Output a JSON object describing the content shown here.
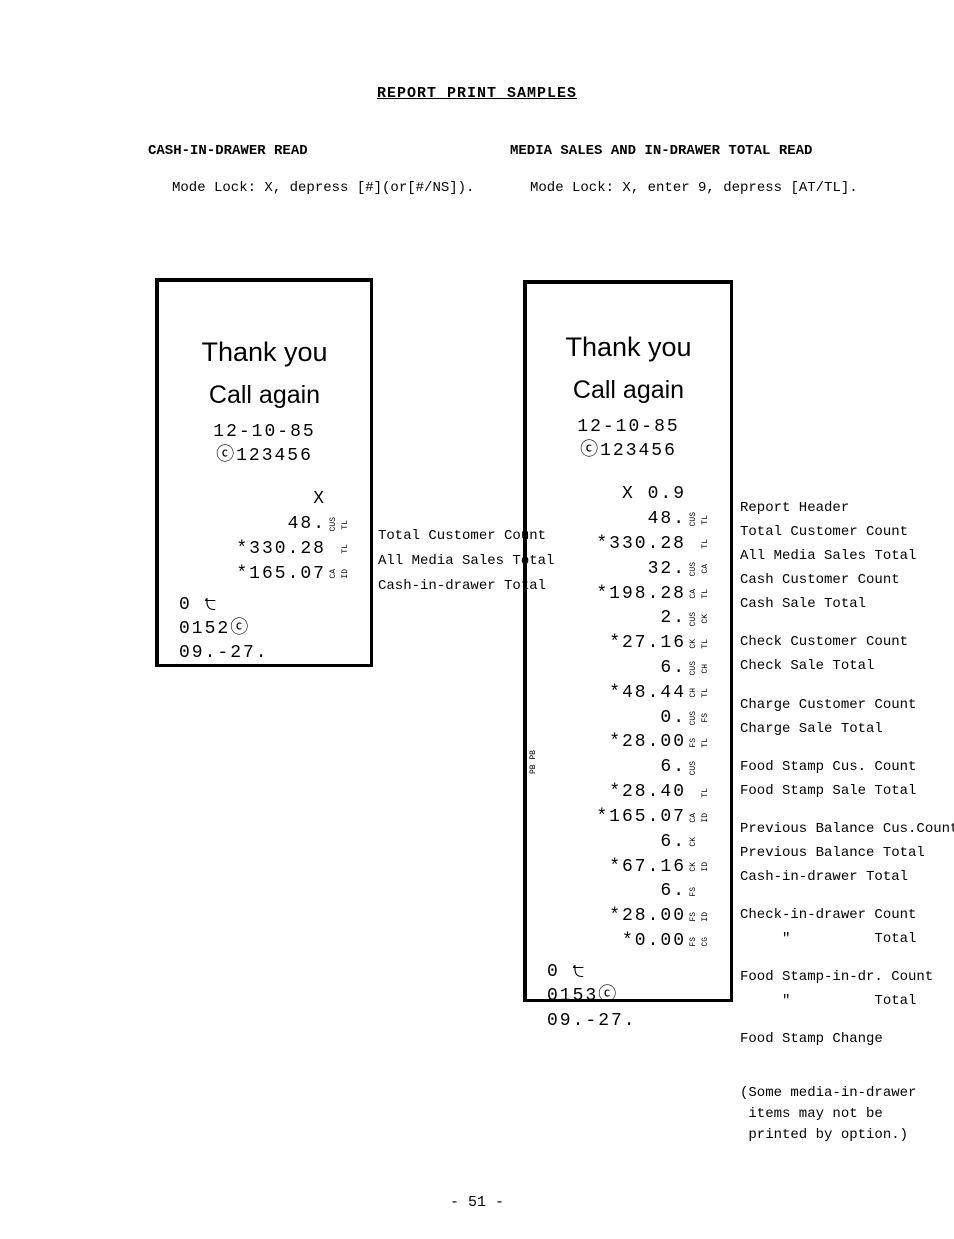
{
  "title": "REPORT PRINT SAMPLES",
  "left_header": "CASH-IN-DRAWER READ",
  "right_header": "MEDIA SALES AND IN-DRAWER TOTAL READ",
  "left_instr": "Mode Lock: X, depress [#](or[#/NS]).",
  "right_instr": "Mode Lock: X, enter 9, depress [AT/TL].",
  "thank_you": "Thank you",
  "call_again": "Call again",
  "date": "12-10-85",
  "serial": "ⓒ123456",
  "left_receipt": {
    "mode": "X",
    "rows": [
      {
        "val": "48.",
        "t1": "CUS",
        "t2": "TL"
      },
      {
        "val": "*330.28",
        "t1": "",
        "t2": "TL"
      },
      {
        "val": "*165.07",
        "t1": "CA",
        "t2": "ID"
      }
    ],
    "footer": [
      "0 ੮",
      "0152ⓒ",
      "09.-27."
    ]
  },
  "right_receipt": {
    "mode": "X  0.9",
    "rows": [
      {
        "val": "48.",
        "t1": "CUS",
        "t2": "TL"
      },
      {
        "val": "*330.28",
        "t1": "",
        "t2": "TL"
      },
      {
        "val": "32.",
        "t1": "CUS",
        "t2": "CA"
      },
      {
        "val": "*198.28",
        "t1": "CA",
        "t2": "TL"
      },
      {
        "val": "2.",
        "t1": "CUS",
        "t2": "CK"
      },
      {
        "val": "*27.16",
        "t1": "CK",
        "t2": "TL"
      },
      {
        "val": "6.",
        "t1": "CUS",
        "t2": "CH"
      },
      {
        "val": "*48.44",
        "t1": "CH",
        "t2": "TL"
      },
      {
        "val": "0.",
        "t1": "CUS",
        "t2": "FS"
      },
      {
        "val": "*28.00",
        "t1": "FS",
        "t2": "TL"
      },
      {
        "val": "6.",
        "t1": "CUS",
        "t2": ""
      },
      {
        "val": "*28.40",
        "t1": "",
        "t2": "TL"
      },
      {
        "val": "*165.07",
        "t1": "CA",
        "t2": "ID"
      },
      {
        "val": "6.",
        "t1": "CK",
        "t2": ""
      },
      {
        "val": "*67.16",
        "t1": "CK",
        "t2": "ID"
      },
      {
        "val": "6.",
        "t1": "FS",
        "t2": ""
      },
      {
        "val": "*28.00",
        "t1": "FS",
        "t2": "ID"
      },
      {
        "val": "*0.00",
        "t1": "FS",
        "t2": "CG"
      }
    ],
    "footer": [
      "0 ੮",
      "0153ⓒ",
      "09.-27."
    ]
  },
  "left_labels": [
    "Total Customer Count",
    "All Media Sales Total",
    "Cash-in-drawer Total"
  ],
  "right_labels": [
    [
      "Report Header",
      "Total Customer Count",
      "All Media Sales Total",
      "Cash Customer Count",
      "Cash Sale Total"
    ],
    [
      "Check Customer Count",
      "Check Sale Total"
    ],
    [
      "Charge Customer Count",
      "Charge Sale Total"
    ],
    [
      "Food Stamp Cus. Count",
      "Food Stamp Sale Total"
    ],
    [
      "Previous Balance Cus.Count",
      "Previous Balance Total",
      "Cash-in-drawer Total"
    ],
    [
      "Check-in-drawer Count",
      "     \"          Total"
    ],
    [
      "Food Stamp-in-dr. Count",
      "     \"          Total"
    ],
    [
      "Food Stamp Change"
    ]
  ],
  "note": "(Some media-in-drawer\n items may not be\n printed by option.)",
  "side_pb": "PB PB",
  "page_num": "- 51 -"
}
